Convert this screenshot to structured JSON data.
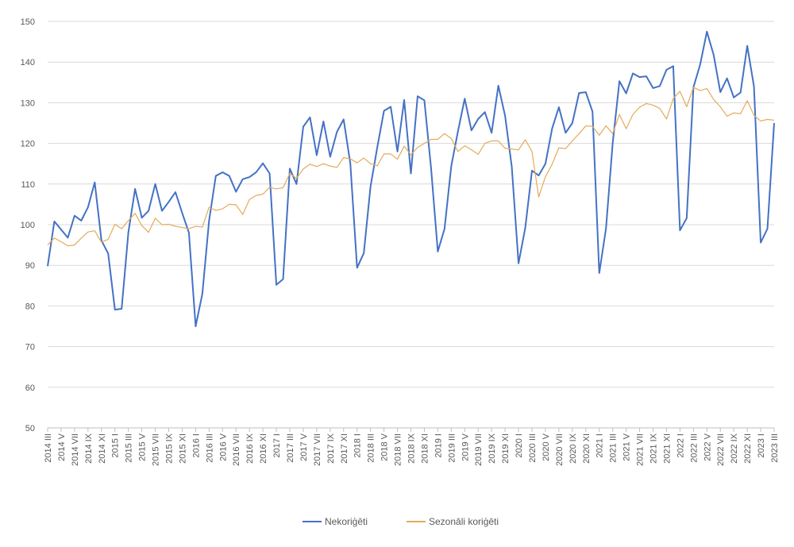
{
  "chart_data": {
    "type": "line",
    "title": "",
    "xlabel": "",
    "ylabel": "",
    "ylim": [
      50,
      150
    ],
    "y_ticks": [
      50,
      60,
      70,
      80,
      90,
      100,
      110,
      120,
      130,
      140,
      150
    ],
    "grid": "horizontal",
    "legend_position": "bottom",
    "x_tick_labels": [
      "2014 III",
      "2014 V",
      "2014 VII",
      "2014 IX",
      "2014 XI",
      "2015 I",
      "2015 III",
      "2015 V",
      "2015 VII",
      "2015 IX",
      "2015 XI",
      "2016 I",
      "2016 III",
      "2016 V",
      "2016 VII",
      "2016 IX",
      "2016 XI",
      "2017 I",
      "2017 III",
      "2017 V",
      "2017 VII",
      "2017 IX",
      "2017 XI",
      "2018 I",
      "2018 III",
      "2018 V",
      "2018 VII",
      "2018 IX",
      "2018 XI",
      "2019 I",
      "2019 III",
      "2019 V",
      "2019 VII",
      "2019 IX",
      "2019 XI",
      "2020 I",
      "2020 III",
      "2020 V",
      "2020 VII",
      "2020 IX",
      "2020 XI",
      "2021 I",
      "2021 III",
      "2021 V",
      "2021 VII",
      "2021 IX",
      "2021 XI",
      "2022 I",
      "2022 III",
      "2022 V",
      "2022 VII",
      "2022 IX",
      "2022 XI",
      "2023 I",
      "2023 III"
    ],
    "series": [
      {
        "name": "Nekoriģēti",
        "color": "#4472c4",
        "values": [
          89.8,
          100.8,
          98.8,
          96.8,
          102.2,
          101.0,
          104.3,
          110.4,
          96.1,
          92.9,
          79.1,
          79.3,
          98.1,
          108.8,
          101.7,
          103.4,
          110.0,
          103.4,
          105.6,
          108.0,
          102.9,
          98.0,
          75.0,
          83.0,
          101.0,
          112.0,
          112.9,
          112.0,
          108.1,
          111.2,
          111.7,
          112.9,
          115.1,
          112.6,
          85.2,
          86.6,
          113.8,
          110.0,
          124.1,
          126.4,
          117.1,
          125.4,
          116.7,
          122.8,
          125.9,
          115.0,
          89.4,
          93.0,
          109.4,
          119.0,
          128.0,
          129.0,
          118.0,
          130.7,
          112.6,
          131.6,
          130.6,
          113.9,
          93.4,
          99.0,
          114.4,
          123.0,
          131.0,
          123.2,
          126.0,
          127.7,
          122.6,
          134.2,
          126.8,
          114.2,
          90.5,
          99.2,
          113.3,
          112.1,
          115.0,
          123.7,
          128.9,
          122.6,
          125.0,
          132.4,
          132.6,
          127.8,
          88.1,
          99.0,
          120.1,
          135.3,
          132.3,
          137.2,
          136.3,
          136.5,
          133.6,
          134.1,
          138.1,
          139.0,
          98.6,
          101.6,
          133.8,
          139.4,
          147.5,
          141.8,
          132.6,
          136.0,
          131.3,
          132.5,
          144.0,
          134.0,
          95.6,
          99.0,
          125.0
        ]
      },
      {
        "name": "Sezonāli koriģēti",
        "color": "#e4ab5a",
        "values": [
          95.0,
          96.7,
          95.8,
          94.8,
          95.0,
          96.7,
          98.2,
          98.5,
          95.7,
          96.4,
          100.1,
          99.0,
          101.0,
          102.8,
          99.8,
          98.1,
          101.6,
          100.0,
          100.1,
          99.6,
          99.3,
          99.0,
          99.6,
          99.4,
          104.3,
          103.5,
          103.9,
          105.0,
          104.9,
          102.5,
          106.2,
          107.2,
          107.5,
          109.2,
          108.8,
          109.1,
          112.6,
          111.4,
          113.7,
          114.9,
          114.3,
          115.0,
          114.4,
          114.1,
          116.5,
          116.2,
          115.2,
          116.4,
          115.0,
          114.5,
          117.4,
          117.4,
          116.1,
          119.3,
          117.2,
          119.0,
          120.0,
          121.0,
          121.0,
          122.4,
          121.2,
          118.0,
          119.4,
          118.4,
          117.3,
          120.0,
          120.6,
          120.6,
          118.8,
          118.6,
          118.4,
          120.9,
          118.0,
          106.8,
          111.8,
          114.9,
          118.9,
          118.7,
          120.6,
          122.4,
          124.3,
          124.2,
          122.0,
          124.3,
          122.4,
          127.1,
          123.6,
          127.1,
          128.9,
          129.8,
          129.4,
          128.6,
          126.0,
          131.0,
          132.8,
          129.0,
          133.8,
          133.0,
          133.5,
          130.8,
          129.0,
          126.7,
          127.5,
          127.3,
          130.5,
          126.9,
          125.5,
          125.9,
          125.7
        ]
      }
    ]
  }
}
